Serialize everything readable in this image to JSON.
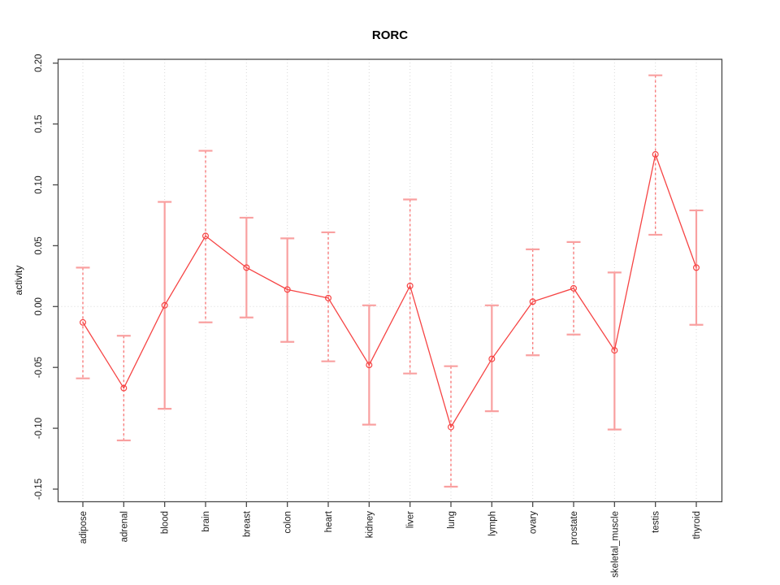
{
  "title": "RORC",
  "chart_data": {
    "type": "line",
    "subtype": "errorbar-line-chart",
    "title": "RORC",
    "xlabel": "",
    "ylabel": "activity",
    "legend": null,
    "grid": {
      "vertical_dotted_per_category": true,
      "zero_line_dotted": true
    },
    "ylim": [
      -0.161,
      0.204
    ],
    "yticks": [
      0.2,
      0.15,
      0.1,
      0.05,
      0.0,
      -0.05,
      -0.1,
      -0.15
    ],
    "ytick_labels": [
      "0.20",
      "0.15",
      "0.10",
      "0.05",
      "0.00",
      "-0.05",
      "-0.10",
      "-0.15"
    ],
    "categories": [
      "adipose",
      "adrenal",
      "blood",
      "brain",
      "breast",
      "colon",
      "heart",
      "kidney",
      "liver",
      "lung",
      "lymph",
      "ovary",
      "prostate",
      "skeletal_muscle",
      "testis",
      "thyroid"
    ],
    "series": [
      {
        "name": "activity",
        "values": [
          -0.013,
          -0.067,
          0.001,
          0.058,
          0.032,
          0.014,
          0.007,
          -0.048,
          0.017,
          -0.099,
          -0.043,
          0.004,
          0.015,
          -0.036,
          0.125,
          0.032
        ],
        "error_high": [
          0.032,
          -0.024,
          0.086,
          0.128,
          0.073,
          0.056,
          0.061,
          0.001,
          0.088,
          -0.049,
          0.001,
          0.047,
          0.053,
          0.028,
          0.19,
          0.079
        ],
        "error_low": [
          -0.059,
          -0.11,
          -0.084,
          -0.013,
          -0.009,
          -0.029,
          -0.045,
          -0.097,
          -0.055,
          -0.148,
          -0.086,
          -0.04,
          -0.023,
          -0.101,
          0.059,
          -0.015
        ],
        "stem_styles": [
          "dashed",
          "dashed",
          "solid",
          "dashed",
          "solid",
          "solid",
          "dashed",
          "solid",
          "dashed",
          "dashed",
          "solid",
          "dashed",
          "dashed",
          "solid",
          "dashed",
          "solid"
        ]
      }
    ],
    "colors": {
      "line": "#f64444",
      "point": "#f64444",
      "errorbar_solid": "#f9a0a0",
      "errorbar_dashed": "#f87c7c",
      "grid": "#d8d8d8",
      "axis": "#4a4a4a",
      "tick_text": "#1a1a1a"
    }
  }
}
